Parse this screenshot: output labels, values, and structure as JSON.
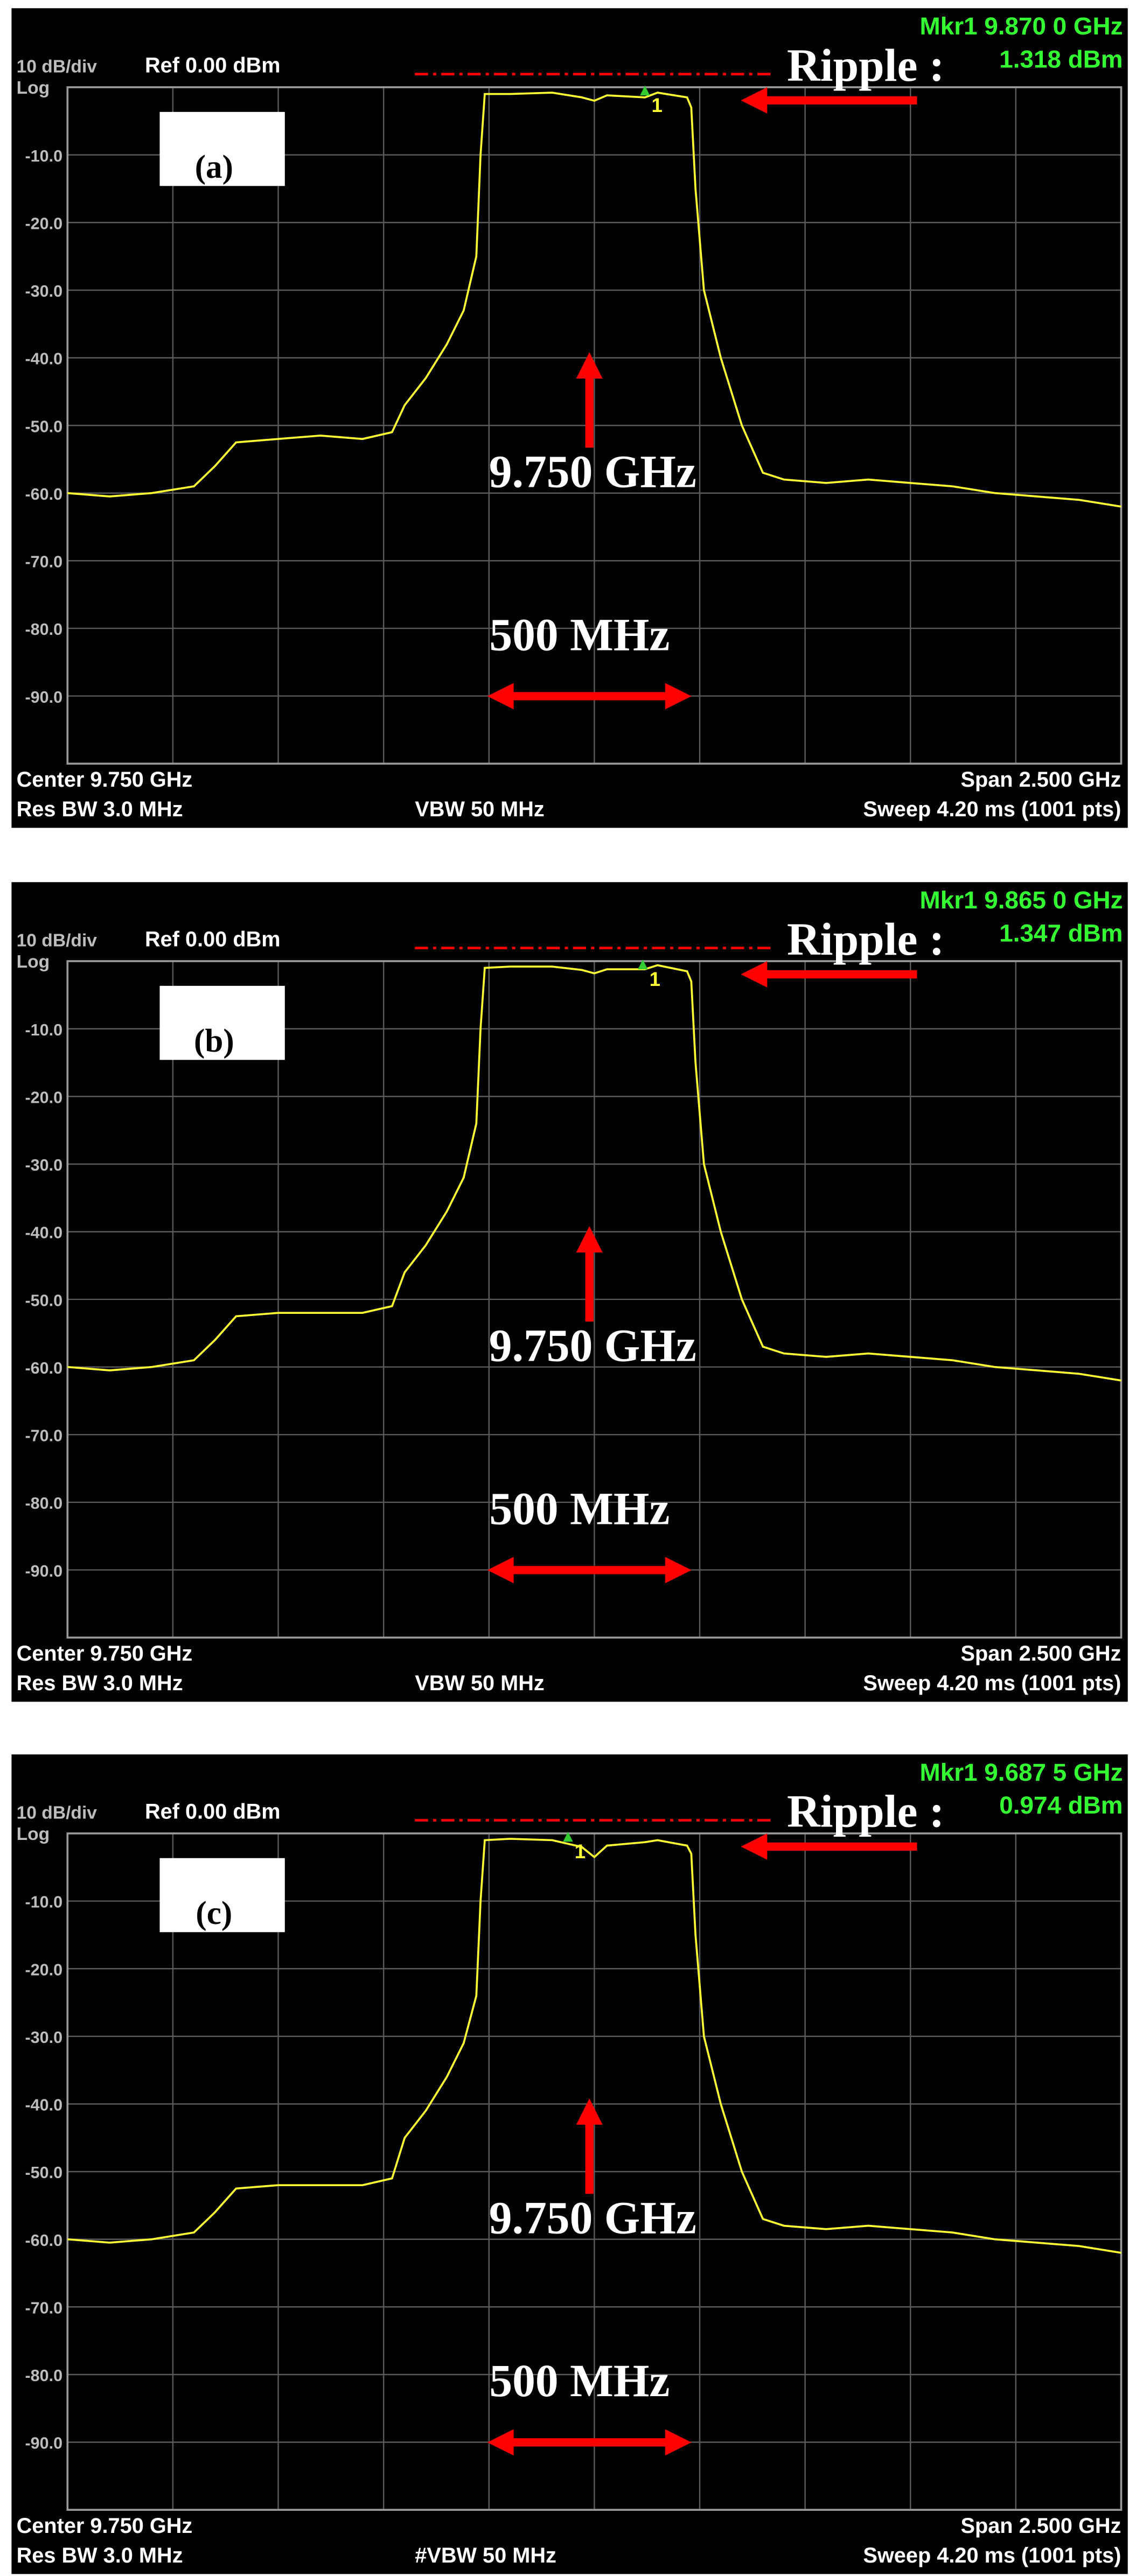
{
  "chart_data": [
    {
      "type": "line",
      "color": "#ffff33",
      "xlim": [
        8.5,
        11.0
      ],
      "ylim": [
        -100,
        0
      ],
      "xticks": [
        8.75,
        9.0,
        9.25,
        9.5,
        9.75,
        10.0,
        10.25,
        10.5,
        10.75
      ],
      "yticks": [
        {
          "value": -10,
          "label": "-10.0"
        },
        {
          "value": -20,
          "label": "-20.0"
        },
        {
          "value": -30,
          "label": "-30.0"
        },
        {
          "value": -40,
          "label": "-40.0"
        },
        {
          "value": -50,
          "label": "-50.0"
        },
        {
          "value": -60,
          "label": "-60.0"
        },
        {
          "value": -70,
          "label": "-70.0"
        },
        {
          "value": -80,
          "label": "-80.0"
        },
        {
          "value": -90,
          "label": "-90.0"
        }
      ],
      "grid": true,
      "header": {
        "scale": "10 dB/div",
        "ref": "Ref 0.00 dBm",
        "mode": "Log"
      },
      "marker": {
        "x": 9.87,
        "label": "1",
        "readout_freq": "Mkr1 9.870 0 GHz",
        "readout_level": "1.318 dBm"
      },
      "annotations": {
        "panel": "(a)",
        "ripple": "Ripple :",
        "center_freq": "9.750 GHz",
        "bandwidth": "500 MHz"
      },
      "footer": {
        "center": "Center 9.750 GHz",
        "rbw": "Res BW 3.0 MHz",
        "vbw": "VBW 50 MHz",
        "span": "Span 2.500 GHz",
        "sweep": "Sweep  4.20 ms (1001 pts)"
      },
      "x": [
        8.5,
        8.6,
        8.7,
        8.8,
        8.85,
        8.9,
        9.0,
        9.1,
        9.2,
        9.27,
        9.3,
        9.35,
        9.4,
        9.44,
        9.47,
        9.48,
        9.49,
        9.55,
        9.65,
        9.72,
        9.75,
        9.78,
        9.87,
        9.9,
        9.97,
        9.98,
        9.99,
        10.01,
        10.05,
        10.1,
        10.15,
        10.2,
        10.3,
        10.4,
        10.5,
        10.6,
        10.7,
        10.8,
        10.9,
        11.0
      ],
      "values": [
        -60,
        -60.5,
        -60,
        -59,
        -56,
        -52.5,
        -52,
        -51.5,
        -52,
        -51,
        -47,
        -43,
        -38,
        -33,
        -25,
        -10,
        -1,
        -1,
        -0.8,
        -1.5,
        -2,
        -1.2,
        -1.5,
        -0.8,
        -1.5,
        -3,
        -15,
        -30,
        -40,
        -50,
        -57,
        -58,
        -58.5,
        -58,
        -58.5,
        -59,
        -60,
        -60.5,
        -61,
        -62
      ]
    },
    {
      "type": "line",
      "color": "#ffff33",
      "xlim": [
        8.5,
        11.0
      ],
      "ylim": [
        -100,
        0
      ],
      "xticks": [
        8.75,
        9.0,
        9.25,
        9.5,
        9.75,
        10.0,
        10.25,
        10.5,
        10.75
      ],
      "yticks": [
        {
          "value": -10,
          "label": "-10.0"
        },
        {
          "value": -20,
          "label": "-20.0"
        },
        {
          "value": -30,
          "label": "-30.0"
        },
        {
          "value": -40,
          "label": "-40.0"
        },
        {
          "value": -50,
          "label": "-50.0"
        },
        {
          "value": -60,
          "label": "-60.0"
        },
        {
          "value": -70,
          "label": "-70.0"
        },
        {
          "value": -80,
          "label": "-80.0"
        },
        {
          "value": -90,
          "label": "-90.0"
        }
      ],
      "grid": true,
      "header": {
        "scale": "10 dB/div",
        "ref": "Ref 0.00 dBm",
        "mode": "Log"
      },
      "marker": {
        "x": 9.865,
        "label": "1",
        "readout_freq": "Mkr1 9.865 0 GHz",
        "readout_level": "1.347 dBm"
      },
      "annotations": {
        "panel": "(b)",
        "ripple": "Ripple :",
        "center_freq": "9.750 GHz",
        "bandwidth": "500 MHz"
      },
      "footer": {
        "center": "Center 9.750 GHz",
        "rbw": "Res BW 3.0 MHz",
        "vbw": "VBW 50 MHz",
        "span": "Span 2.500 GHz",
        "sweep": "Sweep  4.20 ms (1001 pts)"
      },
      "x": [
        8.5,
        8.6,
        8.7,
        8.8,
        8.85,
        8.9,
        9.0,
        9.1,
        9.2,
        9.27,
        9.3,
        9.35,
        9.4,
        9.44,
        9.47,
        9.48,
        9.49,
        9.55,
        9.65,
        9.72,
        9.75,
        9.78,
        9.87,
        9.9,
        9.97,
        9.98,
        9.99,
        10.01,
        10.05,
        10.1,
        10.15,
        10.2,
        10.3,
        10.4,
        10.5,
        10.6,
        10.7,
        10.8,
        10.9,
        11.0
      ],
      "values": [
        -60,
        -60.5,
        -60,
        -59,
        -56,
        -52.5,
        -52,
        -52,
        -52,
        -51,
        -46,
        -42,
        -37,
        -32,
        -24,
        -10,
        -1,
        -0.8,
        -0.8,
        -1.3,
        -1.8,
        -1.2,
        -1.2,
        -0.6,
        -1.5,
        -3,
        -15,
        -30,
        -40,
        -50,
        -57,
        -58,
        -58.5,
        -58,
        -58.5,
        -59,
        -60,
        -60.5,
        -61,
        -62
      ]
    },
    {
      "type": "line",
      "color": "#ffff33",
      "xlim": [
        8.5,
        11.0
      ],
      "ylim": [
        -100,
        0
      ],
      "xticks": [
        8.75,
        9.0,
        9.25,
        9.5,
        9.75,
        10.0,
        10.25,
        10.5,
        10.75
      ],
      "yticks": [
        {
          "value": -10,
          "label": "-10.0"
        },
        {
          "value": -20,
          "label": "-20.0"
        },
        {
          "value": -30,
          "label": "-30.0"
        },
        {
          "value": -40,
          "label": "-40.0"
        },
        {
          "value": -50,
          "label": "-50.0"
        },
        {
          "value": -60,
          "label": "-60.0"
        },
        {
          "value": -70,
          "label": "-70.0"
        },
        {
          "value": -80,
          "label": "-80.0"
        },
        {
          "value": -90,
          "label": "-90.0"
        }
      ],
      "grid": true,
      "header": {
        "scale": "10 dB/div",
        "ref": "Ref 0.00 dBm",
        "mode": "Log"
      },
      "marker": {
        "x": 9.6875,
        "label": "1",
        "readout_freq": "Mkr1 9.687 5 GHz",
        "readout_level": "0.974 dBm"
      },
      "annotations": {
        "panel": "(c)",
        "ripple": "Ripple :",
        "center_freq": "9.750 GHz",
        "bandwidth": "500 MHz"
      },
      "footer": {
        "center": "Center 9.750 GHz",
        "rbw": "Res BW 3.0 MHz",
        "vbw": "#VBW 50 MHz",
        "span": "Span 2.500 GHz",
        "sweep": "Sweep  4.20 ms (1001 pts)"
      },
      "x": [
        8.5,
        8.6,
        8.7,
        8.8,
        8.85,
        8.9,
        9.0,
        9.1,
        9.2,
        9.27,
        9.3,
        9.35,
        9.4,
        9.44,
        9.47,
        9.48,
        9.49,
        9.55,
        9.65,
        9.72,
        9.75,
        9.78,
        9.87,
        9.9,
        9.97,
        9.98,
        9.99,
        10.01,
        10.05,
        10.1,
        10.15,
        10.2,
        10.3,
        10.4,
        10.5,
        10.6,
        10.7,
        10.8,
        10.9,
        11.0
      ],
      "values": [
        -60,
        -60.5,
        -60,
        -59,
        -56,
        -52.5,
        -52,
        -52,
        -52,
        -51,
        -45,
        -41,
        -36,
        -31,
        -24,
        -10,
        -1,
        -0.8,
        -1,
        -2,
        -3.5,
        -1.8,
        -1.3,
        -1,
        -1.8,
        -3,
        -15,
        -30,
        -40,
        -50,
        -57,
        -58,
        -58.5,
        -58,
        -58.5,
        -59,
        -60,
        -60.5,
        -61,
        -62
      ]
    }
  ]
}
